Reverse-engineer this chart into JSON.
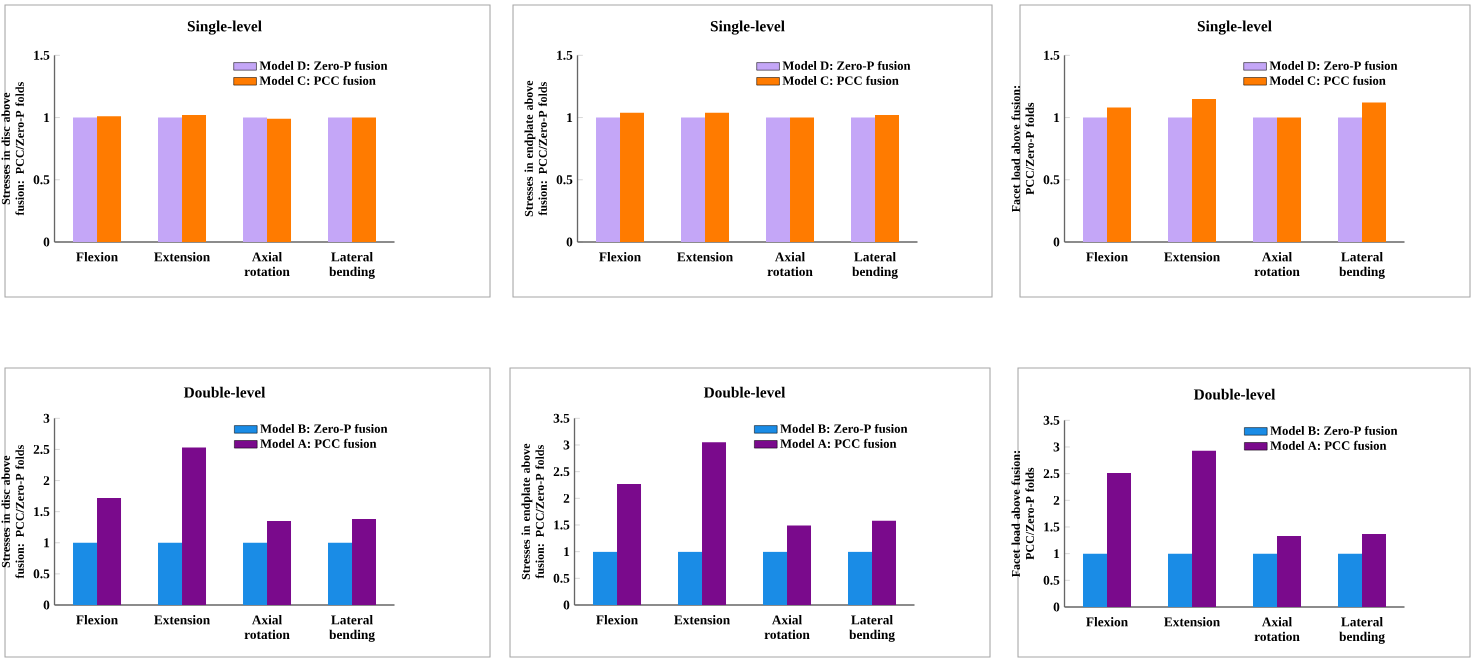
{
  "chart_data": [
    {
      "type": "bar",
      "title": "Single-level",
      "ylabel": "Stresses in disc above fusion: PCC/Zero-P folds",
      "categories": [
        "Flexion",
        "Extension",
        "Axial rotation",
        "Lateral bending"
      ],
      "series": [
        {
          "name": "Model D: Zero-P fusion",
          "color": "#c4a6f7",
          "values": [
            1,
            1,
            1,
            1
          ]
        },
        {
          "name": "Model C: PCC fusion",
          "color": "#ff7b00",
          "values": [
            1.01,
            1.02,
            0.99,
            1.0
          ]
        }
      ],
      "ylim": [
        0,
        1.5
      ],
      "yticks": [
        0,
        0.5,
        1,
        1.5
      ],
      "legend": "top right"
    },
    {
      "type": "bar",
      "title": "Single-level",
      "ylabel": "Stresses in endplate above fusion: PCC/Zero-P folds",
      "categories": [
        "Flexion",
        "Extension",
        "Axial rotation",
        "Lateral bending"
      ],
      "series": [
        {
          "name": "Model D: Zero-P fusion",
          "color": "#c4a6f7",
          "values": [
            1,
            1,
            1,
            1
          ]
        },
        {
          "name": "Model C: PCC fusion",
          "color": "#ff7b00",
          "values": [
            1.04,
            1.04,
            1.0,
            1.02
          ]
        }
      ],
      "ylim": [
        0,
        1.5
      ],
      "yticks": [
        0,
        0.5,
        1,
        1.5
      ],
      "legend": "top right"
    },
    {
      "type": "bar",
      "title": "Single-level",
      "ylabel": "Facet load above fusion: PCC/Zero-P folds",
      "categories": [
        "Flexion",
        "Extension",
        "Axial rotation",
        "Lateral bending"
      ],
      "series": [
        {
          "name": "Model D: Zero-P fusion",
          "color": "#c4a6f7",
          "values": [
            1,
            1,
            1,
            1
          ]
        },
        {
          "name": "Model C: PCC fusion",
          "color": "#ff7b00",
          "values": [
            1.08,
            1.15,
            1.0,
            1.12
          ]
        }
      ],
      "ylim": [
        0,
        1.5
      ],
      "yticks": [
        0,
        0.5,
        1,
        1.5
      ],
      "legend": "top right"
    },
    {
      "type": "bar",
      "title": "Double-level",
      "ylabel": "Stresses in disc above fusion: PCC/Zero-P folds",
      "categories": [
        "Flexion",
        "Extension",
        "Axial rotation",
        "Lateral bending"
      ],
      "series": [
        {
          "name": "Model B: Zero-P fusion",
          "color": "#1a8ce6",
          "values": [
            1,
            1,
            1,
            1
          ]
        },
        {
          "name": "Model A: PCC fusion",
          "color": "#7a0a8c",
          "values": [
            1.72,
            2.53,
            1.35,
            1.38
          ]
        }
      ],
      "ylim": [
        0,
        3
      ],
      "yticks": [
        0,
        0.5,
        1,
        1.5,
        2,
        2.5,
        3
      ],
      "legend": "top right"
    },
    {
      "type": "bar",
      "title": "Double-level",
      "ylabel": "Stresses in endplate above fusion: PCC/Zero-P folds",
      "categories": [
        "Flexion",
        "Extension",
        "Axial rotation",
        "Lateral bending"
      ],
      "series": [
        {
          "name": "Model B: Zero-P fusion",
          "color": "#1a8ce6",
          "values": [
            1,
            1,
            1,
            1
          ]
        },
        {
          "name": "Model A: PCC fusion",
          "color": "#7a0a8c",
          "values": [
            2.27,
            3.05,
            1.49,
            1.58
          ]
        }
      ],
      "ylim": [
        0,
        3.5
      ],
      "yticks": [
        0,
        0.5,
        1,
        1.5,
        2,
        2.5,
        3,
        3.5
      ],
      "legend": "top right"
    },
    {
      "type": "bar",
      "title": "Double-level",
      "ylabel": "Facet load above fusion: PCC/Zero-P folds",
      "categories": [
        "Flexion",
        "Extension",
        "Axial rotation",
        "Lateral bending"
      ],
      "series": [
        {
          "name": "Model B: Zero-P fusion",
          "color": "#1a8ce6",
          "values": [
            1,
            1,
            1,
            1
          ]
        },
        {
          "name": "Model A: PCC fusion",
          "color": "#7a0a8c",
          "values": [
            2.51,
            2.93,
            1.33,
            1.37
          ]
        }
      ],
      "ylim": [
        0,
        3.5
      ],
      "yticks": [
        0,
        0.5,
        1,
        1.5,
        2,
        2.5,
        3,
        3.5
      ],
      "legend": "top right"
    }
  ]
}
